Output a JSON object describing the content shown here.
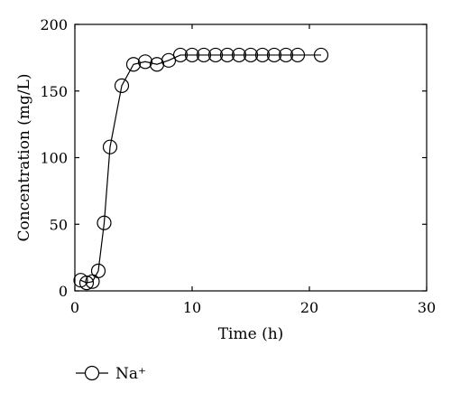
{
  "chart_data": {
    "type": "line",
    "xlabel": "Time (h)",
    "ylabel": "Concentration (mg/L)",
    "xlim": [
      0,
      30
    ],
    "ylim": [
      0,
      200
    ],
    "xticks": [
      0,
      10,
      20,
      30
    ],
    "yticks": [
      0,
      50,
      100,
      150,
      200
    ],
    "grid": false,
    "legend_position": "bottom-left",
    "series": [
      {
        "name": "Na⁺",
        "color": "#000000",
        "marker": "open-circle",
        "x": [
          0.5,
          1.0,
          1.5,
          2.0,
          2.5,
          3.0,
          4.0,
          5.0,
          6.0,
          7.0,
          8.0,
          9.0,
          10.0,
          11.0,
          12.0,
          13.0,
          14.0,
          15.0,
          16.0,
          17.0,
          18.0,
          19.0,
          21.0
        ],
        "y": [
          8,
          6,
          7,
          15,
          51,
          108,
          154,
          170,
          172,
          170,
          173,
          177,
          177,
          177,
          177,
          177,
          177,
          177,
          177,
          177,
          177,
          177,
          177
        ]
      }
    ]
  }
}
